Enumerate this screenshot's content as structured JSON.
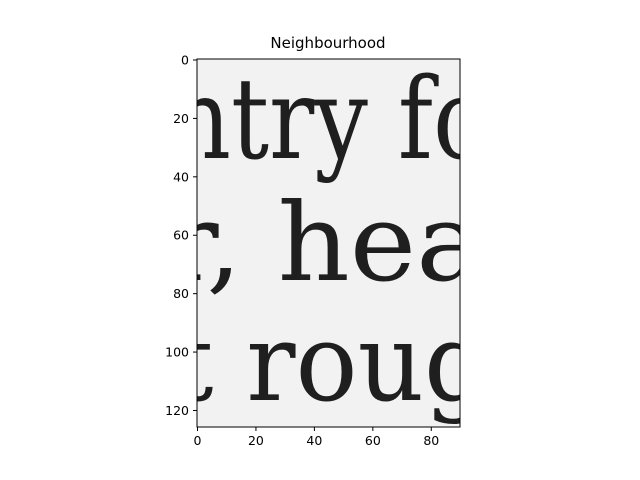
{
  "figure": {
    "title": "Neighbourhood",
    "image_text_lines": [
      "ntry fo",
      "r, hea",
      "t roug"
    ],
    "background_color": "#f2f2f2",
    "ink_color": "#1f1f1f",
    "x_axis": {
      "ticks": [
        0,
        20,
        40,
        60,
        80
      ],
      "range": [
        0,
        90
      ]
    },
    "y_axis": {
      "ticks": [
        0,
        20,
        40,
        60,
        80,
        100,
        120
      ],
      "range": [
        0,
        126
      ],
      "inverted": true
    }
  }
}
